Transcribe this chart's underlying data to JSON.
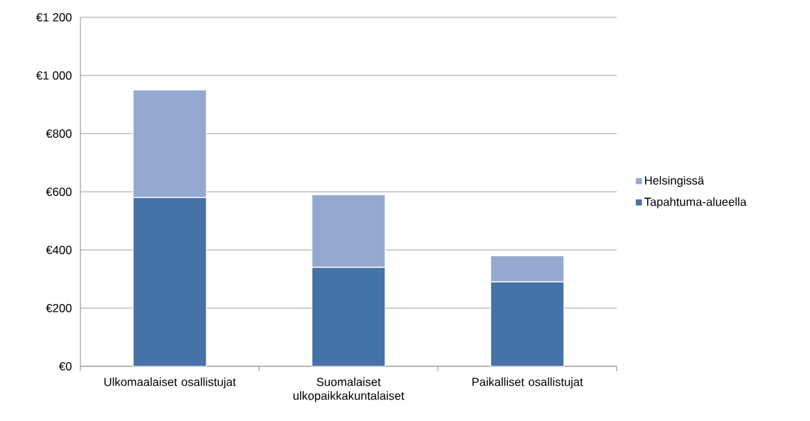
{
  "chart_data": {
    "type": "bar",
    "stacked": true,
    "categories": [
      "Ulkomaalaiset osallistujat",
      "Suomalaiset ulkopaikkakuntalaiset",
      "Paikalliset osallistujat"
    ],
    "series": [
      {
        "name": "Tapahtuma-alueella",
        "color": "#4572a7",
        "values": [
          580,
          340,
          290
        ]
      },
      {
        "name": "Helsingissä",
        "color": "#95a9d0",
        "values": [
          370,
          250,
          90
        ]
      }
    ],
    "ylim": [
      0,
      1200
    ],
    "yticks": [
      {
        "value": 0,
        "label": "€0"
      },
      {
        "value": 200,
        "label": "€200"
      },
      {
        "value": 400,
        "label": "€400"
      },
      {
        "value": 600,
        "label": "€600"
      },
      {
        "value": 800,
        "label": "€800"
      },
      {
        "value": 1000,
        "label": "€1 000"
      },
      {
        "value": 1200,
        "label": "€1 200"
      }
    ],
    "grid": "y",
    "legend": "right"
  }
}
